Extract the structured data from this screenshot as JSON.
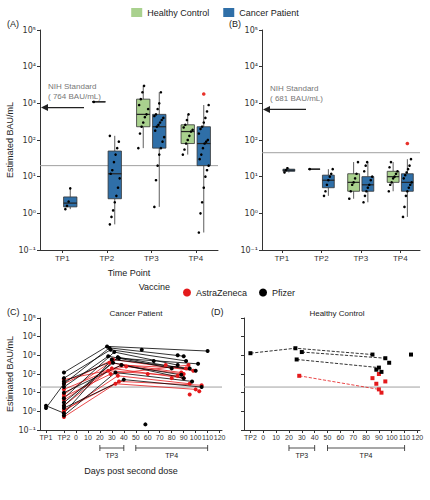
{
  "chart_data": [
    {
      "type": "boxplot",
      "title": "(A)",
      "xlabel": "Time Point",
      "ylabel": "Estimated BAU/mL",
      "categories": [
        "TP1",
        "TP2",
        "TP3",
        "TP4"
      ],
      "ylim": [
        0.1,
        100000
      ],
      "yticks": [
        {
          "value": 0.1,
          "label": "10⁻¹"
        },
        {
          "value": 1,
          "label": "10⁰"
        },
        {
          "value": 10,
          "label": "10¹"
        },
        {
          "value": 100,
          "label": "10²"
        },
        {
          "value": 1000,
          "label": "10³"
        },
        {
          "value": 10000,
          "label": "10⁴"
        },
        {
          "value": 100000,
          "label": "10⁵"
        }
      ],
      "log": "y",
      "grid": false,
      "legend": "top",
      "reference_line": 20,
      "annotation": {
        "text": [
          "NIH Standard",
          "( 764 BAU/mL)"
        ],
        "y": 764
      },
      "series": [
        {
          "name": "Healthy Control",
          "color": "#a9d18e",
          "boxes": [
            null,
            [
              1100,
              1100,
              1100,
              1100,
              1100
            ],
            [
              60,
              230,
              500,
              1300,
              3000
            ],
            [
              40,
              80,
              170,
              260,
              500
            ]
          ],
          "points": {
            "color": "#000000",
            "values": [
              [],
              [
                1100
              ],
              [
                60,
                150,
                230,
                300,
                420,
                500,
                700,
                900,
                1300,
                2000,
                3000
              ],
              [
                40,
                55,
                80,
                100,
                130,
                170,
                190,
                220,
                260,
                350,
                500
              ]
            ]
          }
        },
        {
          "name": "Cancer Patient",
          "color": "#2f6fa8",
          "boxes": [
            [
              1.3,
              1.5,
              1.9,
              2.8,
              4.8
            ],
            [
              0.5,
              2.5,
              12,
              50,
              130
            ],
            [
              1.5,
              60,
              230,
              500,
              2000
            ],
            [
              0.3,
              20,
              80,
              230,
              900
            ]
          ],
          "points": {
            "color": "#000000",
            "values": [
              [
                1.3,
                1.6,
                2.1,
                4.8
              ],
              [
                0.5,
                0.8,
                1.2,
                2,
                3,
                5,
                9,
                12,
                15,
                25,
                40,
                60,
                90,
                130
              ],
              [
                1.5,
                8,
                20,
                40,
                60,
                90,
                120,
                180,
                230,
                260,
                300,
                350,
                400,
                450,
                500,
                700,
                1000,
                2000
              ],
              [
                0.3,
                1,
                2,
                5,
                10,
                15,
                20,
                30,
                40,
                60,
                80,
                90,
                100,
                150,
                200,
                230,
                300,
                400,
                600,
                900
              ]
            ]
          },
          "outliers": {
            "color": "#e8312a",
            "values": [
              [],
              [],
              [],
              [
                1800
              ]
            ]
          }
        }
      ]
    },
    {
      "type": "boxplot",
      "title": "(B)",
      "categories": [
        "TP1",
        "TP2",
        "TP3",
        "TP4"
      ],
      "ylim": [
        0.1,
        100000
      ],
      "yticks": [
        {
          "value": 0.1,
          "label": "10⁻¹"
        },
        {
          "value": 1,
          "label": "10⁰"
        },
        {
          "value": 10,
          "label": "10¹"
        },
        {
          "value": 100,
          "label": "10²"
        },
        {
          "value": 1000,
          "label": "10³"
        },
        {
          "value": 10000,
          "label": "10⁴"
        },
        {
          "value": 100000,
          "label": "10⁵"
        }
      ],
      "log": "y",
      "grid": false,
      "reference_line": 45,
      "annotation": {
        "text": [
          "NIH Standard",
          "( 681 BAU/mL)"
        ],
        "y": 681
      },
      "series": [
        {
          "name": "Healthy Control",
          "color": "#a9d18e",
          "boxes": [
            null,
            [
              16,
              16,
              16,
              16,
              16
            ],
            [
              2.5,
              4,
              7,
              12,
              25
            ],
            [
              4,
              7,
              10,
              14,
              25
            ]
          ],
          "points": {
            "color": "#000000",
            "values": [
              [],
              [
                16
              ],
              [
                2.5,
                4,
                6,
                7,
                9,
                12,
                25
              ],
              [
                4,
                6,
                7,
                9,
                10,
                12,
                14,
                18,
                25
              ]
            ]
          }
        },
        {
          "name": "Cancer Patient",
          "color": "#2f6fa8",
          "boxes": [
            [
              13,
              14,
              15,
              16,
              17
            ],
            [
              3,
              5,
              8,
              11,
              16
            ],
            [
              2,
              4,
              6,
              10,
              25
            ],
            [
              0.8,
              4,
              7,
              12,
              30
            ]
          ],
          "points": {
            "color": "#000000",
            "values": [
              [
                13,
                15,
                17
              ],
              [
                3,
                4,
                6,
                8,
                10,
                12,
                16
              ],
              [
                2,
                3,
                4,
                5,
                6,
                8,
                10,
                14,
                20,
                25
              ],
              [
                0.8,
                1.5,
                3,
                4,
                5,
                6,
                7,
                9,
                11,
                13,
                16,
                20,
                30
              ]
            ]
          },
          "outliers": {
            "color": "#e8312a",
            "values": [
              [],
              [],
              [],
              [
                80
              ]
            ]
          }
        }
      ]
    },
    {
      "type": "line",
      "title": "(C)",
      "subtitle": "Cancer Patient",
      "xlabel": "Days post second dose",
      "ylabel": "Estimated BAU/mL",
      "xlim": [
        -30,
        122
      ],
      "xticks": [
        {
          "value": -25,
          "label": "TP1"
        },
        {
          "value": -10,
          "label": "TP2"
        },
        0,
        10,
        20,
        30,
        40,
        50,
        60,
        70,
        80,
        90,
        100,
        110,
        120
      ],
      "ylim": [
        0.1,
        100000
      ],
      "yticks": [
        {
          "value": 0.1,
          "label": "10⁻¹"
        },
        {
          "value": 1,
          "label": "10⁰"
        },
        {
          "value": 10,
          "label": "10¹"
        },
        {
          "value": 100,
          "label": "10²"
        },
        {
          "value": 1000,
          "label": "10³"
        },
        {
          "value": 10000,
          "label": "10⁴"
        },
        {
          "value": 100000,
          "label": "10⁵"
        }
      ],
      "log": "y",
      "grid": false,
      "legend": "top",
      "legend_title": "Vaccine",
      "marker": "circle",
      "line_style": "solid",
      "reference_line": 20,
      "brackets": [
        {
          "label": "TP3",
          "from": 20,
          "to": 40
        },
        {
          "label": "TP4",
          "from": 50,
          "to": 110
        }
      ],
      "series": [
        {
          "name": "AstraZeneca",
          "color": "#e41a1c",
          "tracks": [
            [
              [
                -10,
                4
              ],
              [
                30,
                200
              ],
              [
                90,
                60
              ]
            ],
            [
              [
                -10,
                1
              ],
              [
                35,
                80
              ],
              [
                95,
                30
              ]
            ],
            [
              [
                -10,
                8
              ],
              [
                28,
                400
              ],
              [
                88,
                120
              ]
            ],
            [
              [
                -10,
                0.5
              ],
              [
                33,
                30
              ],
              [
                100,
                15
              ]
            ],
            [
              [
                -10,
                15
              ],
              [
                38,
                300
              ],
              [
                92,
                200
              ]
            ],
            [
              [
                -10,
                2
              ],
              [
                27,
                150
              ],
              [
                85,
                80
              ]
            ],
            [
              [
                -10,
                30
              ],
              [
                31,
                600
              ],
              [
                98,
                150
              ]
            ],
            [
              [
                -10,
                1.2
              ],
              [
                36,
                40
              ],
              [
                105,
                25
              ]
            ],
            [
              [
                -10,
                6
              ],
              [
                29,
                100
              ],
              [
                94,
                300
              ]
            ],
            [
              [
                -10,
                50
              ],
              [
                42,
                250
              ],
              [
                90,
                100
              ]
            ],
            [
              [
                60,
                100
              ]
            ],
            [
              [
                75,
                300
              ]
            ],
            [
              [
                80,
                60
              ]
            ],
            [
              [
                95,
                8
              ]
            ],
            [
              [
                103,
                12
              ]
            ]
          ]
        },
        {
          "name": "Pfizer",
          "color": "#000000",
          "tracks": [
            [
              [
                -25,
                1.5
              ],
              [
                -10,
                30
              ],
              [
                28,
                2500
              ],
              [
                90,
                900
              ]
            ],
            [
              [
                -25,
                2
              ],
              [
                -10,
                0.8
              ],
              [
                30,
                600
              ],
              [
                95,
                200
              ]
            ],
            [
              [
                -10,
                120
              ],
              [
                26,
                3000
              ],
              [
                110,
                1700
              ]
            ],
            [
              [
                -10,
                5
              ],
              [
                32,
                1500
              ],
              [
                85,
                300
              ]
            ],
            [
              [
                -10,
                2
              ],
              [
                35,
                800
              ],
              [
                100,
                150
              ]
            ],
            [
              [
                -10,
                60
              ],
              [
                29,
                2000
              ],
              [
                92,
                500
              ]
            ],
            [
              [
                -10,
                10
              ],
              [
                38,
                300
              ],
              [
                88,
                90
              ]
            ],
            [
              [
                -10,
                0.6
              ],
              [
                33,
                120
              ],
              [
                97,
                40
              ]
            ],
            [
              [
                -10,
                20
              ],
              [
                27,
                900
              ],
              [
                80,
                200
              ]
            ],
            [
              [
                -10,
                1.5
              ],
              [
                40,
                50
              ],
              [
                105,
                20
              ]
            ],
            [
              [
                -10,
                3
              ],
              [
                31,
                400
              ],
              [
                90,
                60
              ]
            ],
            [
              [
                -10,
                40
              ],
              [
                36,
                700
              ],
              [
                102,
                350
              ]
            ],
            [
              [
                58,
                0.2
              ]
            ],
            [
              [
                55,
                2000
              ]
            ],
            [
              [
                65,
                500
              ]
            ],
            [
              [
                85,
                1000
              ]
            ]
          ]
        }
      ]
    },
    {
      "type": "line",
      "title": "(D)",
      "subtitle": "Healthy Control",
      "xlim": [
        -15,
        122
      ],
      "xticks": [
        {
          "value": -10,
          "label": "TP2"
        },
        0,
        10,
        20,
        30,
        40,
        50,
        60,
        70,
        80,
        90,
        100,
        110,
        120
      ],
      "ylim": [
        0.1,
        100000
      ],
      "yticks": [
        {
          "value": 0.1,
          "label": "10⁻¹"
        },
        {
          "value": 1,
          "label": "10⁰"
        },
        {
          "value": 10,
          "label": "10¹"
        },
        {
          "value": 100,
          "label": "10²"
        },
        {
          "value": 1000,
          "label": "10³"
        },
        {
          "value": 10000,
          "label": "10⁴"
        },
        {
          "value": 100000,
          "label": "10⁵"
        }
      ],
      "log": "y",
      "grid": false,
      "tick_labels": "x",
      "marker": "square",
      "line_style": "dashed",
      "reference_line": 20,
      "brackets": [
        {
          "label": "TP3",
          "from": 20,
          "to": 40
        },
        {
          "label": "TP4",
          "from": 50,
          "to": 110
        }
      ],
      "series": [
        {
          "name": "AstraZeneca",
          "color": "#e41a1c",
          "tracks": [
            [
              [
                28,
                80
              ],
              [
                90,
                15
              ]
            ],
            [
              [
                85,
                60
              ]
            ],
            [
              [
                88,
                30
              ]
            ],
            [
              [
                92,
                10
              ]
            ],
            [
              [
                95,
                40
              ]
            ],
            [
              [
                90,
                100
              ]
            ]
          ]
        },
        {
          "name": "Pfizer",
          "color": "#000000",
          "tracks": [
            [
              [
                -10,
                1300
              ],
              [
                25,
                2400
              ],
              [
                85,
                1100
              ]
            ],
            [
              [
                26,
                600
              ],
              [
                90,
                220
              ]
            ],
            [
              [
                30,
                1500
              ],
              [
                95,
                700
              ]
            ],
            [
              [
                98,
                400
              ]
            ],
            [
              [
                115,
                1100
              ]
            ],
            [
              [
                92,
                130
              ]
            ],
            [
              [
                88,
                170
              ]
            ]
          ]
        }
      ]
    }
  ]
}
